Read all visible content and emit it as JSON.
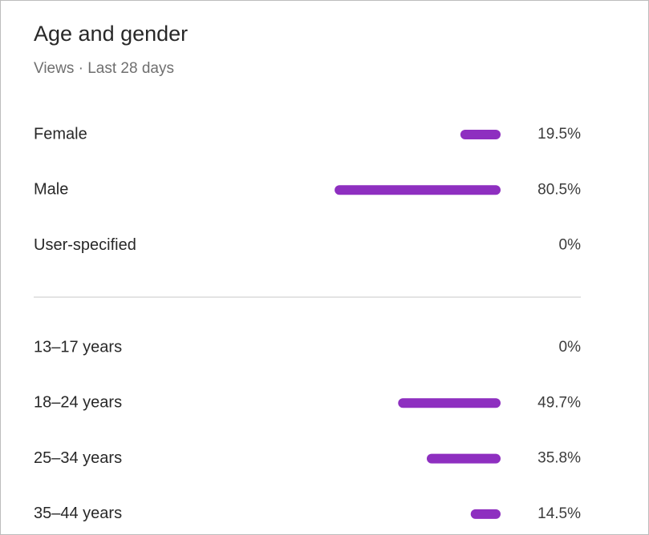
{
  "title": "Age and gender",
  "subtitle": "Views · Last 28 days",
  "chart_data": [
    {
      "type": "hbar",
      "categories": [
        "Female",
        "Male",
        "User-specified"
      ],
      "values": [
        19.5,
        80.5,
        0
      ],
      "value_labels": [
        "19.5%",
        "80.5%",
        "0%"
      ],
      "color": "#8e2fc0"
    },
    {
      "type": "hbar",
      "categories": [
        "13–17 years",
        "18–24 years",
        "25–34 years",
        "35–44 years"
      ],
      "values": [
        0,
        49.7,
        35.8,
        14.5
      ],
      "value_labels": [
        "0%",
        "49.7%",
        "35.8%",
        "14.5%"
      ],
      "color": "#8e2fc0"
    }
  ]
}
